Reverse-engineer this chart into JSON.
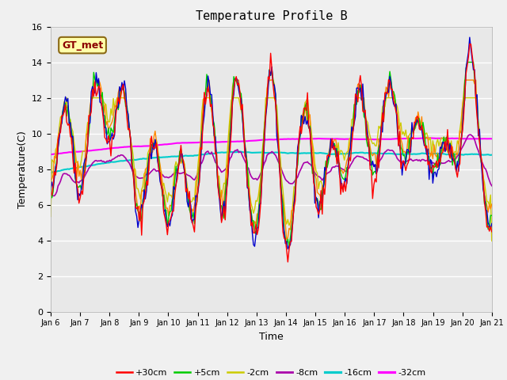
{
  "title": "Temperature Profile B",
  "xlabel": "Time",
  "ylabel": "Temperature(C)",
  "ylim": [
    0,
    16
  ],
  "xlim": [
    0,
    15
  ],
  "annotation_text": "GT_met",
  "annotation_color": "#8B0000",
  "annotation_bg": "#FFFFAA",
  "tick_labels": [
    "Jan 6",
    "Jan 7",
    "Jan 8",
    "Jan 9",
    "Jan 10",
    "Jan 11",
    "Jan 12",
    "Jan 13",
    "Jan 14",
    "Jan 15",
    "Jan 16",
    "Jan 17",
    "Jan 18",
    "Jan 19",
    "Jan 20",
    "Jan 21"
  ],
  "series": {
    "+30cm": {
      "color": "#FF0000",
      "lw": 1.0
    },
    "+15cm": {
      "color": "#0000CC",
      "lw": 1.0
    },
    "+5cm": {
      "color": "#00CC00",
      "lw": 1.0
    },
    "0cm": {
      "color": "#FF8800",
      "lw": 1.0
    },
    "-2cm": {
      "color": "#CCCC00",
      "lw": 1.0
    },
    "-8cm": {
      "color": "#AA00AA",
      "lw": 1.2
    },
    "-16cm": {
      "color": "#00CCCC",
      "lw": 1.5
    },
    "-32cm": {
      "color": "#FF00FF",
      "lw": 1.5
    }
  }
}
